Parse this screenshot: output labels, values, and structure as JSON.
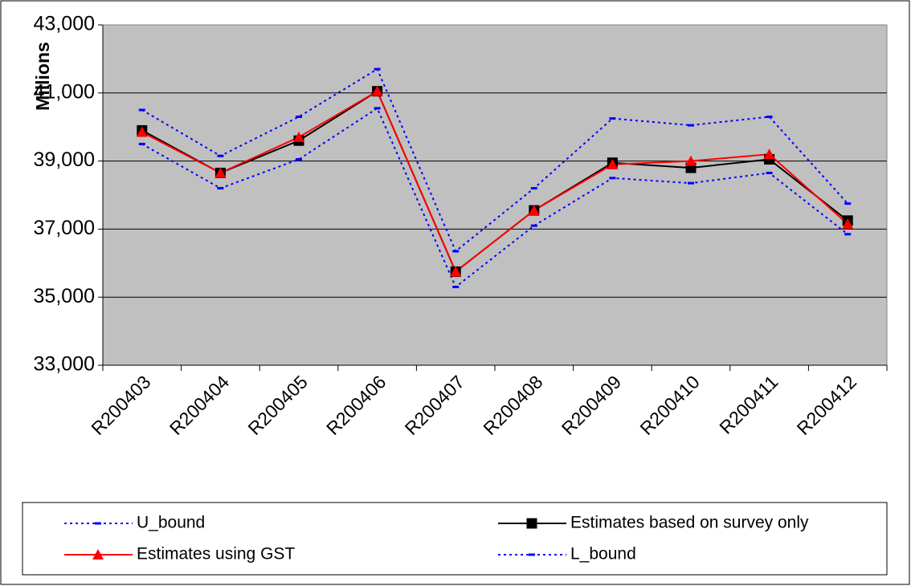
{
  "chart_data": {
    "type": "line",
    "y_label": "Millions",
    "categories": [
      "R200403",
      "R200404",
      "R200405",
      "R200406",
      "R200407",
      "R200408",
      "R200409",
      "R200410",
      "R200411",
      "R200412"
    ],
    "series": [
      {
        "name": "U_bound",
        "color": "#0000ff",
        "dashed": true,
        "marker": "dash",
        "values": [
          40500,
          39150,
          40300,
          41700,
          36350,
          38200,
          40250,
          40050,
          40300,
          37750
        ]
      },
      {
        "name": "Estimates based on survey only",
        "color": "#000000",
        "dashed": false,
        "marker": "square",
        "values": [
          39900,
          38650,
          39600,
          41050,
          35750,
          37550,
          38950,
          38800,
          39050,
          37250
        ]
      },
      {
        "name": "Estimates using GST",
        "color": "#ff0000",
        "dashed": false,
        "marker": "triangle",
        "values": [
          39850,
          38650,
          39700,
          41050,
          35750,
          37550,
          38900,
          39000,
          39200,
          37150
        ]
      },
      {
        "name": "L_bound",
        "color": "#0000ff",
        "dashed": true,
        "marker": "dash",
        "values": [
          39500,
          38200,
          39050,
          40550,
          35300,
          37100,
          38500,
          38350,
          38650,
          36850
        ]
      }
    ],
    "ylim": [
      33000,
      43000
    ],
    "yticks": [
      {
        "value": 33000,
        "label": "33,000"
      },
      {
        "value": 35000,
        "label": "35,000"
      },
      {
        "value": 37000,
        "label": "37,000"
      },
      {
        "value": 39000,
        "label": "39,000"
      },
      {
        "value": 41000,
        "label": "41,000"
      },
      {
        "value": 43000,
        "label": "43,000"
      }
    ],
    "grid": true,
    "plot_background": "#c0c0c0",
    "legend": "bottom"
  }
}
